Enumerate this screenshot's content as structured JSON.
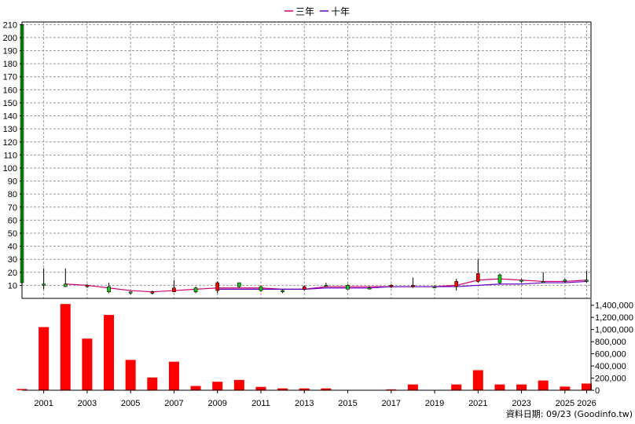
{
  "chart_data": {
    "type": "candlestick+bar",
    "legend": [
      {
        "label": "三年",
        "color": "#d0006e"
      },
      {
        "label": "十年",
        "color": "#6a00c8"
      }
    ],
    "credit": "資料日期: 09/23 (Goodinfo.tw)",
    "x_range": [
      2000,
      2026.2
    ],
    "x_tick_labels": [
      "2001",
      "2003",
      "2005",
      "2007",
      "2009",
      "2011",
      "2013",
      "2015",
      "2017",
      "2019",
      "2021",
      "2023",
      "2025",
      "2026"
    ],
    "price_axis": {
      "ylim": [
        0,
        212
      ],
      "ticks": [
        10,
        20,
        30,
        40,
        50,
        60,
        70,
        80,
        90,
        100,
        110,
        120,
        130,
        140,
        150,
        160,
        170,
        180,
        190,
        200,
        210
      ],
      "grid": true
    },
    "volume_axis": {
      "ylim": [
        0,
        1500000
      ],
      "ticks": [
        0,
        200000,
        400000,
        600000,
        800000,
        1000000,
        1200000,
        1400000
      ],
      "tick_labels": [
        "0",
        "200,000",
        "400,000",
        "600,000",
        "800,000",
        "1,000,000",
        "1,200,000",
        "1,400,000"
      ]
    },
    "colors": {
      "up": "#18c818",
      "down": "#ff0000",
      "volume": "#ff0000",
      "grid": "#9a9a9a"
    },
    "candles": [
      {
        "year": 2000,
        "open": 12,
        "close": 210,
        "high": 210,
        "low": 12
      },
      {
        "year": 2001,
        "open": 11,
        "close": 11,
        "high": 23,
        "low": 7
      },
      {
        "year": 2002,
        "open": 9,
        "close": 11,
        "high": 23,
        "low": 9
      },
      {
        "year": 2003,
        "open": 10,
        "close": 9,
        "high": 11,
        "low": 8
      },
      {
        "year": 2004,
        "open": 5,
        "close": 9,
        "high": 12,
        "low": 4
      },
      {
        "year": 2005,
        "open": 5,
        "close": 5,
        "high": 5,
        "low": 3
      },
      {
        "year": 2006,
        "open": 5,
        "close": 4,
        "high": 6,
        "low": 3
      },
      {
        "year": 2007,
        "open": 8,
        "close": 5,
        "high": 14,
        "low": 5
      },
      {
        "year": 2008,
        "open": 5,
        "close": 8,
        "high": 9,
        "low": 4
      },
      {
        "year": 2009,
        "open": 12,
        "close": 6,
        "high": 13,
        "low": 4
      },
      {
        "year": 2010,
        "open": 9,
        "close": 12,
        "high": 12,
        "low": 8
      },
      {
        "year": 2011,
        "open": 6,
        "close": 9,
        "high": 10,
        "low": 5
      },
      {
        "year": 2012,
        "open": 6,
        "close": 6,
        "high": 7,
        "low": 4
      },
      {
        "year": 2013,
        "open": 9,
        "close": 7,
        "high": 10,
        "low": 6
      },
      {
        "year": 2014,
        "open": 10,
        "close": 10,
        "high": 12,
        "low": 9
      },
      {
        "year": 2015,
        "open": 7,
        "close": 10,
        "high": 11,
        "low": 7
      },
      {
        "year": 2016,
        "open": 8,
        "close": 8,
        "high": 9,
        "low": 7
      },
      {
        "year": 2017,
        "open": 10,
        "close": 9,
        "high": 11,
        "low": 8
      },
      {
        "year": 2018,
        "open": 10,
        "close": 9,
        "high": 16,
        "low": 8
      },
      {
        "year": 2019,
        "open": 9,
        "close": 9,
        "high": 10,
        "low": 8
      },
      {
        "year": 2020,
        "open": 13,
        "close": 9,
        "high": 15,
        "low": 6
      },
      {
        "year": 2021,
        "open": 19,
        "close": 13,
        "high": 30,
        "low": 12
      },
      {
        "year": 2022,
        "open": 12,
        "close": 18,
        "high": 19,
        "low": 11
      },
      {
        "year": 2023,
        "open": 14,
        "close": 14,
        "high": 15,
        "low": 12
      },
      {
        "year": 2024,
        "open": 13,
        "close": 13,
        "high": 20,
        "low": 12
      },
      {
        "year": 2025,
        "open": 13,
        "close": 14,
        "high": 15,
        "low": 12
      },
      {
        "year": 2026,
        "open": 13,
        "close": 14,
        "high": 21,
        "low": 12
      }
    ],
    "volume": [
      {
        "year": 2000,
        "value": 20000
      },
      {
        "year": 2001,
        "value": 1040000
      },
      {
        "year": 2002,
        "value": 1420000
      },
      {
        "year": 2003,
        "value": 850000
      },
      {
        "year": 2004,
        "value": 1240000
      },
      {
        "year": 2005,
        "value": 500000
      },
      {
        "year": 2006,
        "value": 210000
      },
      {
        "year": 2007,
        "value": 470000
      },
      {
        "year": 2008,
        "value": 70000
      },
      {
        "year": 2009,
        "value": 140000
      },
      {
        "year": 2010,
        "value": 170000
      },
      {
        "year": 2011,
        "value": 55000
      },
      {
        "year": 2012,
        "value": 30000
      },
      {
        "year": 2013,
        "value": 30000
      },
      {
        "year": 2014,
        "value": 30000
      },
      {
        "year": 2015,
        "value": 5000
      },
      {
        "year": 2016,
        "value": 5000
      },
      {
        "year": 2017,
        "value": 15000
      },
      {
        "year": 2018,
        "value": 95000
      },
      {
        "year": 2019,
        "value": 5000
      },
      {
        "year": 2020,
        "value": 95000
      },
      {
        "year": 2021,
        "value": 330000
      },
      {
        "year": 2022,
        "value": 95000
      },
      {
        "year": 2023,
        "value": 95000
      },
      {
        "year": 2024,
        "value": 160000
      },
      {
        "year": 2025,
        "value": 60000
      },
      {
        "year": 2026,
        "value": 110000
      }
    ],
    "series": [
      {
        "name": "三年",
        "color": "#d0006e",
        "x": [
          2002,
          2003,
          2004,
          2005,
          2006,
          2007,
          2008,
          2009,
          2010,
          2011,
          2012,
          2013,
          2014,
          2015,
          2016,
          2017,
          2018,
          2019,
          2020,
          2021,
          2022,
          2023,
          2024,
          2025,
          2026
        ],
        "values": [
          11,
          10,
          8,
          6,
          5,
          6,
          7,
          8,
          8,
          8,
          7,
          7,
          9,
          9,
          9,
          9,
          9,
          9,
          10,
          14,
          15,
          14,
          13,
          13,
          14
        ]
      },
      {
        "name": "十年",
        "color": "#6a00c8",
        "x": [
          2009,
          2010,
          2011,
          2012,
          2013,
          2014,
          2015,
          2016,
          2017,
          2018,
          2019,
          2020,
          2021,
          2022,
          2023,
          2024,
          2025,
          2026
        ],
        "values": [
          7,
          7,
          7,
          7,
          7,
          8,
          8,
          8,
          9,
          9,
          9,
          9,
          10,
          11,
          11,
          12,
          12,
          13
        ]
      }
    ]
  }
}
